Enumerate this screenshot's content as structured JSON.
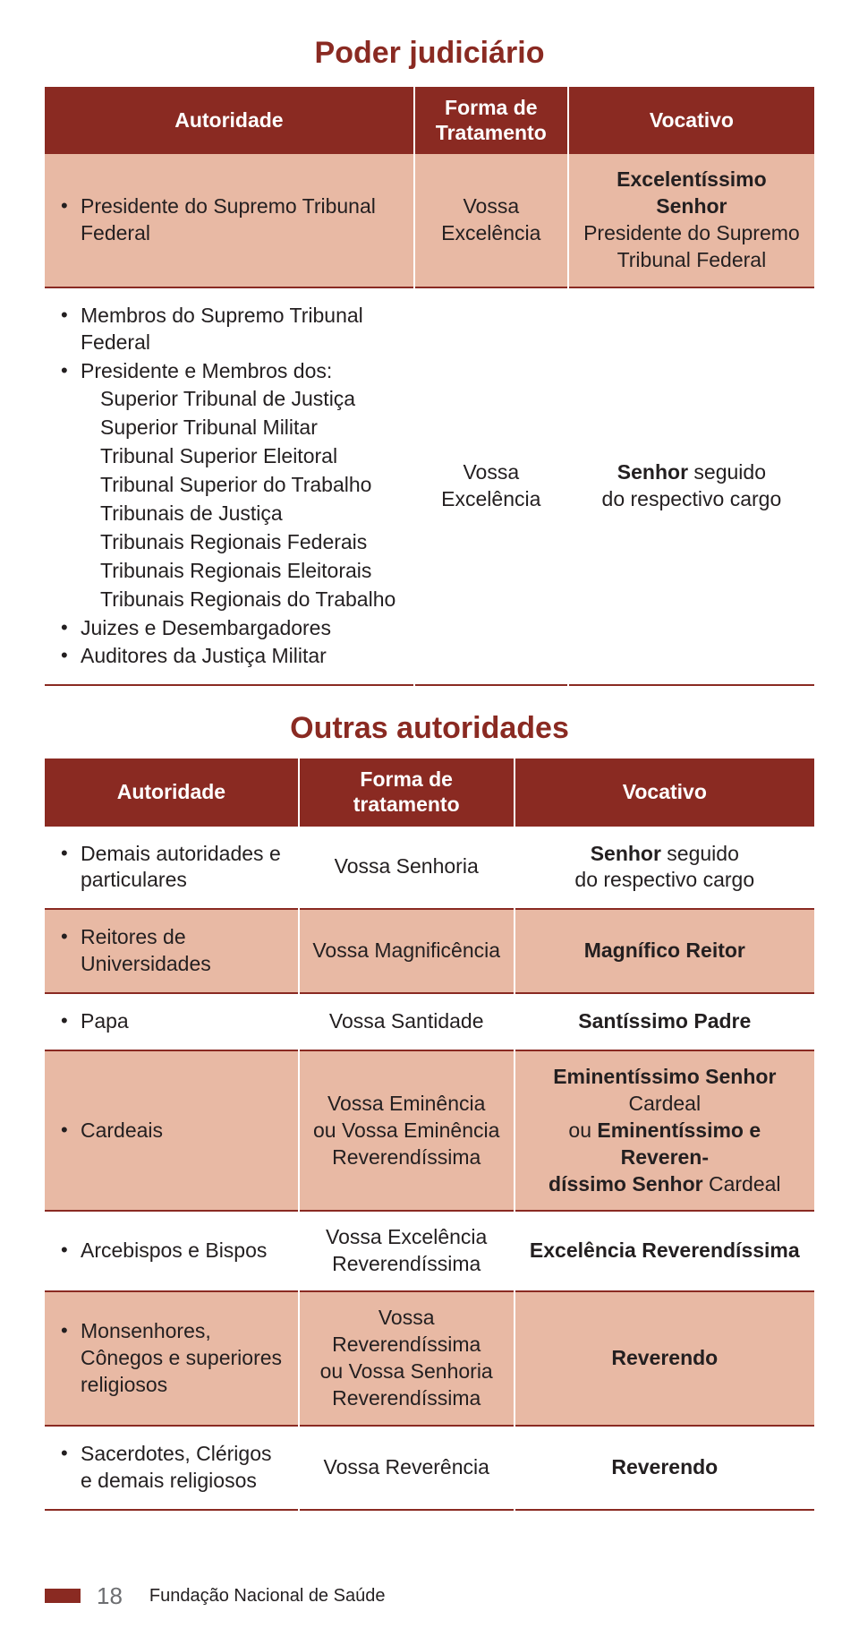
{
  "colors": {
    "header_bg": "#8a2a22",
    "header_text": "#ffffff",
    "alt_row_bg": "#e8b9a4",
    "body_bg": "#ffffff",
    "text": "#231f20",
    "title": "#8a2a22",
    "footer_num": "#6d6e71"
  },
  "typography": {
    "title_fontsize": 34,
    "body_fontsize": 23,
    "footer_num_fontsize": 26,
    "footer_text_fontsize": 20
  },
  "title1": "Poder judiciário",
  "title2": "Outras autoridades",
  "table1": {
    "headers": [
      "Autoridade",
      "Forma de Tratamento",
      "Vocativo"
    ],
    "rows": [
      {
        "alt": true,
        "auth_items": [
          "Presidente do Supremo Tribunal Federal"
        ],
        "forma": "Vossa Excelência",
        "voc_html": "<span class='voc-bold'>Excelentíssimo Senhor</span><br>Presidente do Supremo<br>Tribunal Federal"
      },
      {
        "alt": false,
        "auth_items": [
          "Membros do Supremo Tribunal Federal",
          {
            "label": "Presidente e Membros dos:",
            "sub": [
              "Superior Tribunal de Justiça",
              "Superior Tribunal Militar",
              "Tribunal Superior Eleitoral",
              "Tribunal Superior do Trabalho",
              "Tribunais de Justiça",
              "Tribunais Regionais Federais",
              "Tribunais Regionais Eleitorais",
              "Tribunais Regionais do Trabalho"
            ]
          },
          "Juizes e Desembargadores",
          "Auditores da Justiça Militar"
        ],
        "forma": "Vossa Excelência",
        "voc_html": "<span class='voc-bold'>Senhor</span> seguido<br>do respectivo cargo"
      }
    ]
  },
  "table2": {
    "headers": [
      "Autoridade",
      "Forma de tratamento",
      "Vocativo"
    ],
    "rows": [
      {
        "alt": false,
        "auth_items": [
          "Demais autoridades e particulares"
        ],
        "forma": "Vossa Senhoria",
        "voc_html": "<span class='voc-bold'>Senhor</span> seguido<br>do respectivo cargo"
      },
      {
        "alt": true,
        "auth_items": [
          "Reitores de Universidades"
        ],
        "forma": "Vossa Magnificência",
        "voc_html": "<span class='voc-bold'>Magnífico Reitor</span>"
      },
      {
        "alt": false,
        "auth_items": [
          "Papa"
        ],
        "forma": "Vossa Santidade",
        "voc_html": "<span class='voc-bold'>Santíssimo Padre</span>"
      },
      {
        "alt": true,
        "auth_items": [
          "Cardeais"
        ],
        "forma": "Vossa Eminência ou Vossa Eminência Reverendíssima",
        "voc_html": "<span class='voc-bold'>Eminentíssimo Senhor</span> Cardeal<br>ou <span class='voc-bold'>Eminentíssimo e Reveren-<br>díssimo Senhor</span> Cardeal"
      },
      {
        "alt": false,
        "auth_items": [
          "Arcebispos e Bispos"
        ],
        "forma": "Vossa Excelência Reverendíssima",
        "voc_html": "<span class='voc-bold'>Excelência Reverendíssima</span>"
      },
      {
        "alt": true,
        "auth_items": [
          "Monsenhores, Cônegos e superiores religiosos"
        ],
        "forma": "Vossa Reverendíssima ou Vossa Senhoria Reverendíssima",
        "voc_html": "<span class='voc-bold'>Reverendo</span>"
      },
      {
        "alt": false,
        "auth_items": [
          "Sacerdotes, Clérigos e demais religiosos"
        ],
        "forma": "Vossa Reverência",
        "voc_html": "<span class='voc-bold'>Reverendo</span>"
      }
    ]
  },
  "footer": {
    "page_num": "18",
    "text": "Fundação Nacional de Saúde"
  }
}
